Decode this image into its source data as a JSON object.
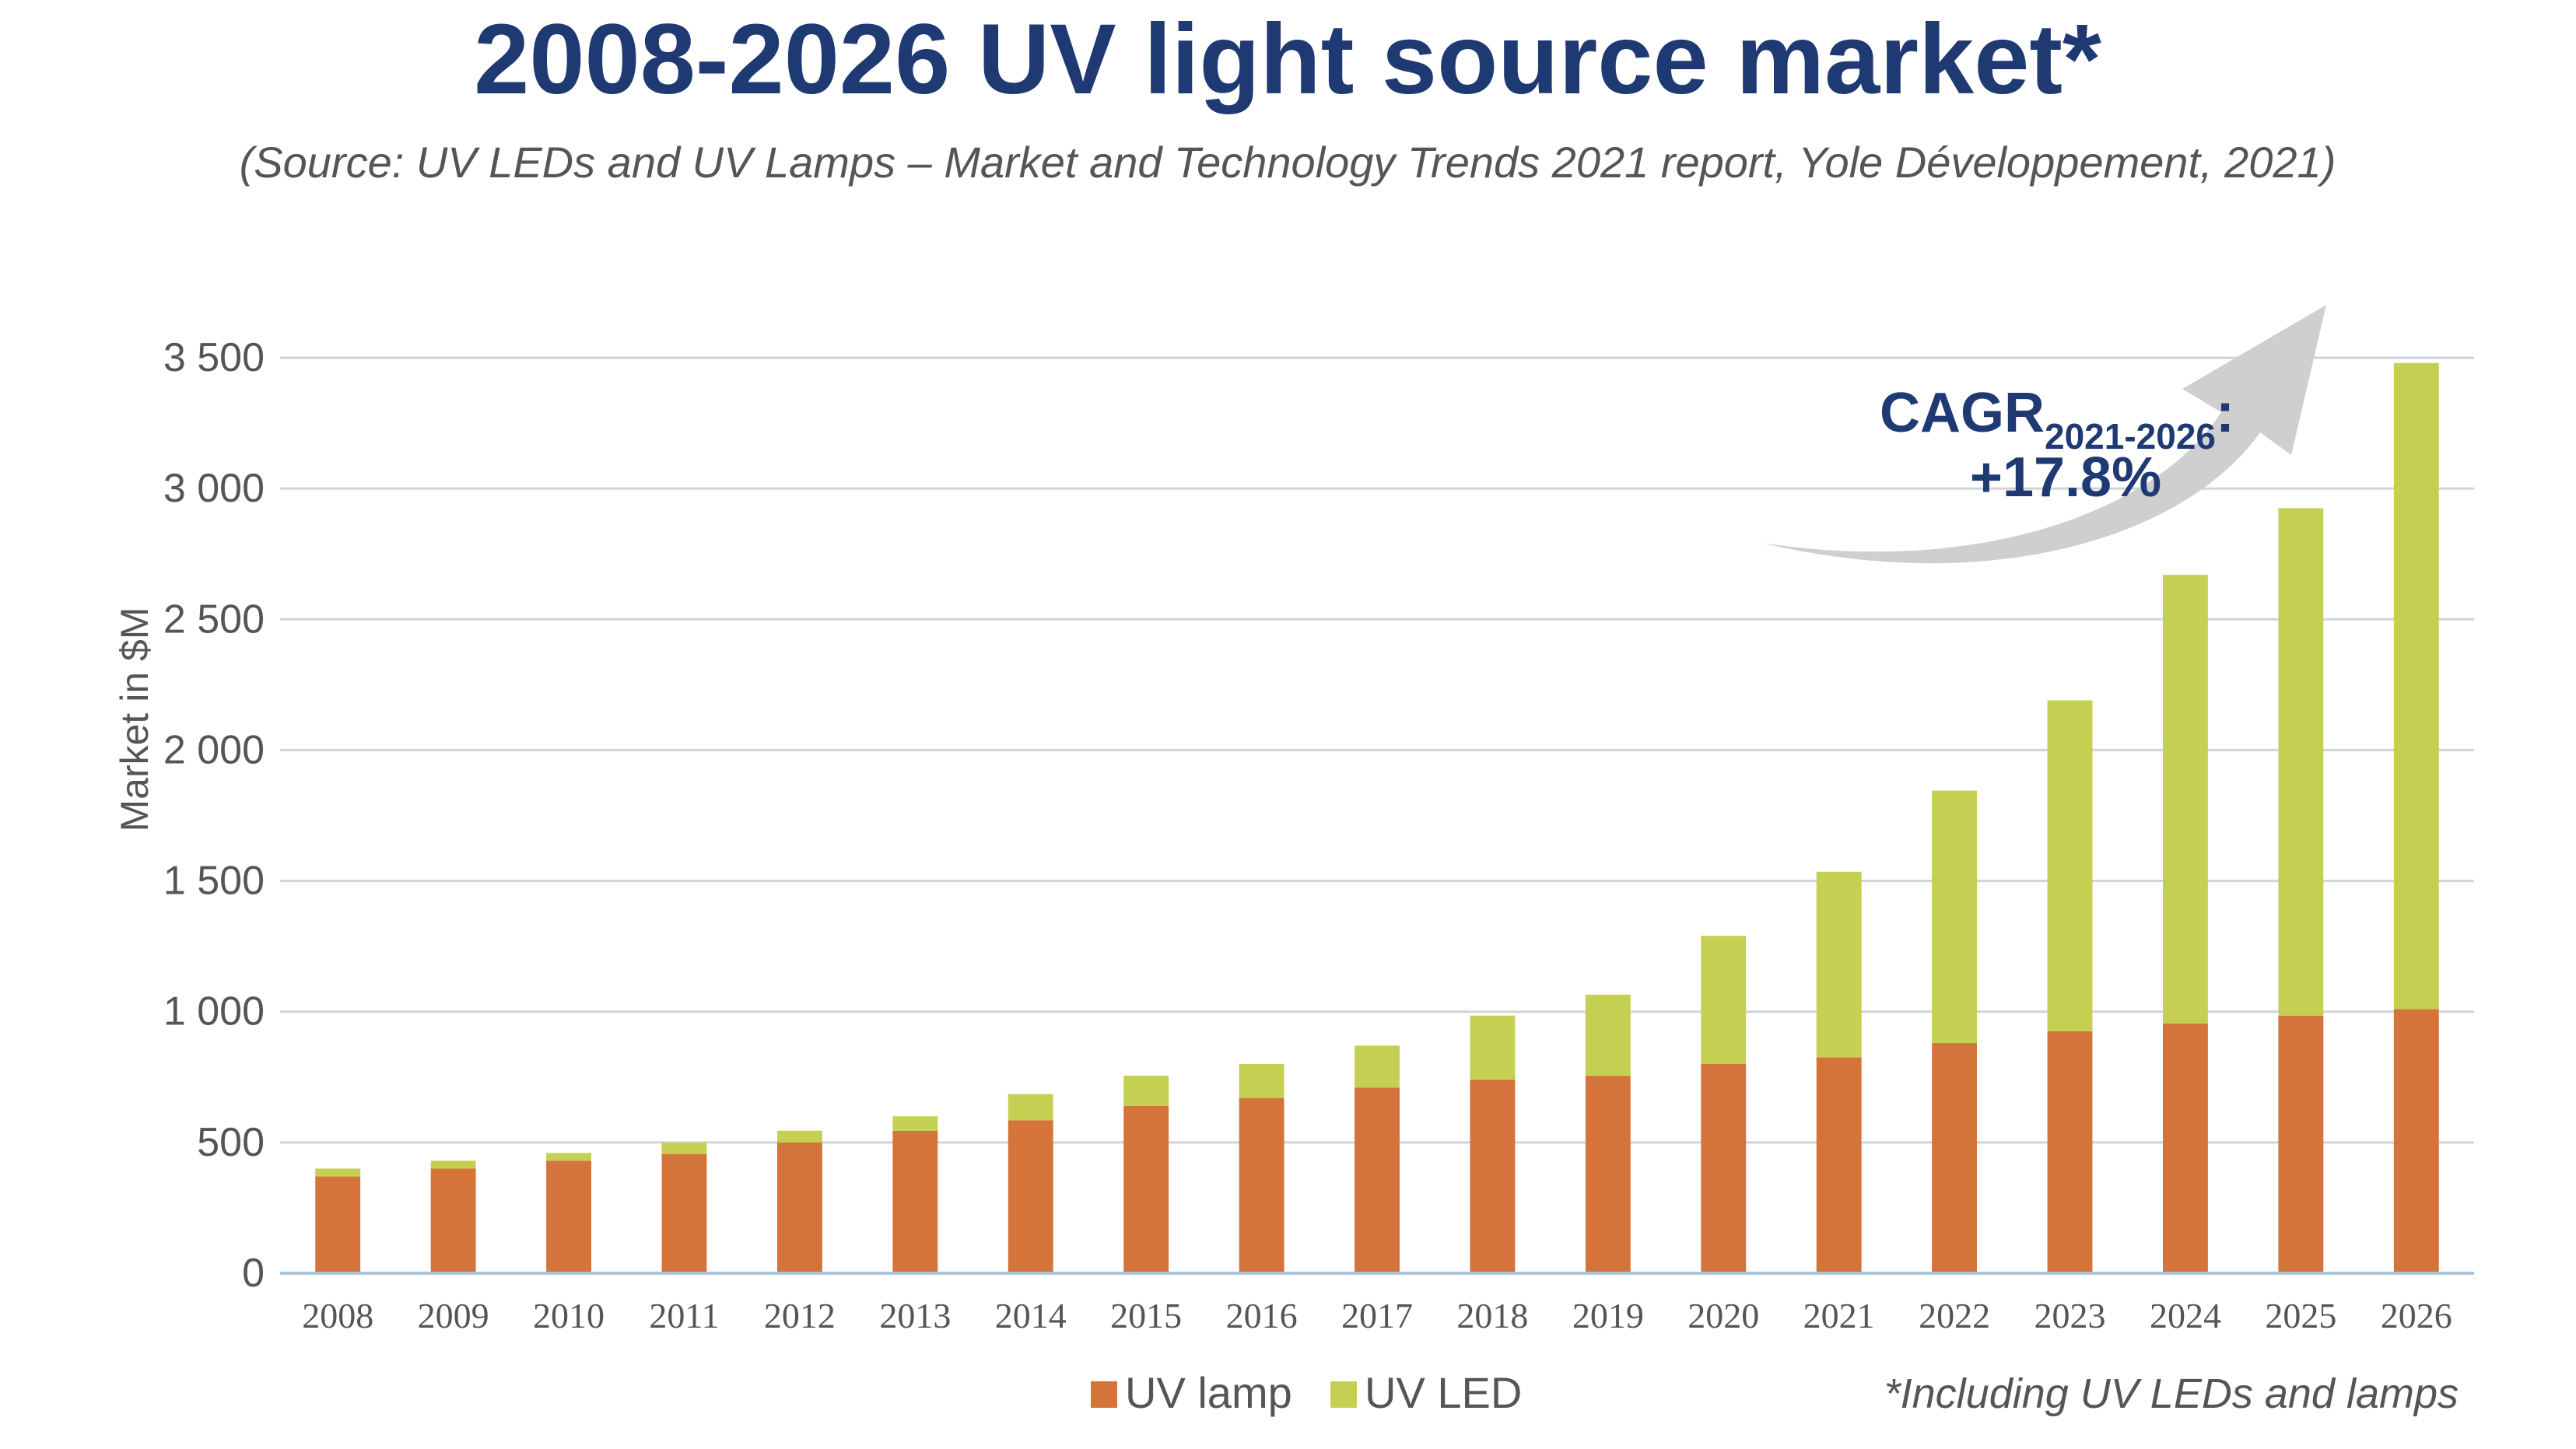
{
  "chart_data": {
    "type": "bar",
    "stacked": true,
    "title": "2008-2026 UV light source market*",
    "subtitle": "(Source: UV LEDs and UV Lamps – Market and Technology Trends 2021 report, Yole Développement, 2021)",
    "ylabel": "Market in $M",
    "xlabel": "",
    "ylim": [
      0,
      3500
    ],
    "yticks": [
      0,
      500,
      1000,
      1500,
      2000,
      2500,
      3000,
      3500
    ],
    "ytick_labels": [
      "0",
      "500",
      "1 000",
      "1 500",
      "2 000",
      "2 500",
      "3 000",
      "3 500"
    ],
    "grid": true,
    "legend_position": "bottom",
    "categories": [
      "2008",
      "2009",
      "2010",
      "2011",
      "2012",
      "2013",
      "2014",
      "2015",
      "2016",
      "2017",
      "2018",
      "2019",
      "2020",
      "2021",
      "2022",
      "2023",
      "2024",
      "2025",
      "2026"
    ],
    "series": [
      {
        "name": "UV lamp",
        "color": "#D4733A",
        "values": [
          370,
          400,
          430,
          455,
          500,
          545,
          585,
          640,
          670,
          710,
          740,
          755,
          800,
          825,
          880,
          925,
          955,
          985,
          1010
        ]
      },
      {
        "name": "UV LED",
        "color": "#C5D052",
        "values": [
          30,
          30,
          30,
          45,
          45,
          55,
          100,
          115,
          130,
          160,
          245,
          310,
          490,
          710,
          965,
          1265,
          1715,
          1940,
          2470
        ]
      }
    ],
    "annotation": {
      "cagr_label": "CAGR",
      "cagr_period": "2021-2026",
      "cagr_suffix": ":",
      "cagr_value": "+17.8%"
    },
    "footnote": "*Including UV LEDs and lamps"
  },
  "colors": {
    "title": "#1F3A73",
    "subtitle": "#555555",
    "axis_text": "#555555",
    "grid": "#D0D4D9",
    "axis_line": "#A9C4DA",
    "arrow": "#CFCFCF"
  }
}
